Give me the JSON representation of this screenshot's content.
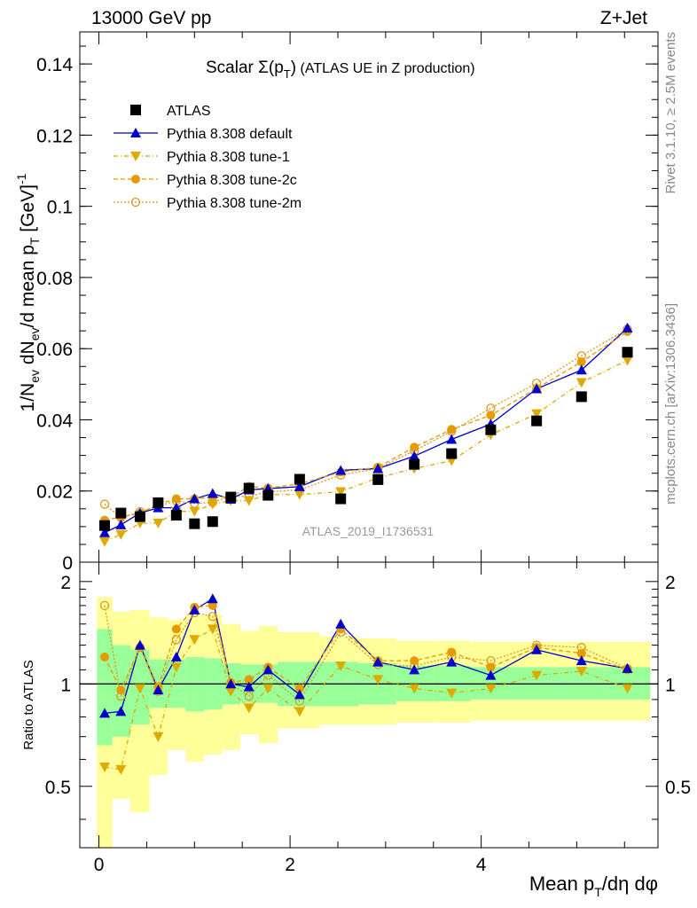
{
  "header": {
    "left": "13000 GeV pp",
    "right": "Z+Jet"
  },
  "side_labels": {
    "rivet": "Rivet 3.1.10, ≥ 2.5M events",
    "mcplots": "mcplots.cern.ch [arXiv:1306.3436]"
  },
  "watermark": "ATLAS_2019_I1736531",
  "chart_data": {
    "type": "scatter",
    "title": "Scalar Σ(pT) (ATLAS UE in Z production)",
    "title_parts": [
      "Scalar ",
      "Σ(p",
      "T",
      ")",
      " (ATLAS UE in Z production)"
    ],
    "xlabel": "Mean pT/dη dφ",
    "xlabel_parts": [
      "Mean p",
      "T",
      "/dη dφ"
    ],
    "ylabel": "1/Nev dNev/d mean pT [GeV]-1",
    "ylabel_parts": [
      "1/N",
      "ev",
      " dN",
      "ev",
      "/d mean p",
      "T",
      " [GeV]",
      "-1"
    ],
    "xlim": [
      -0.2,
      5.85
    ],
    "ylim": [
      0,
      0.149
    ],
    "x_ticks": [
      0,
      2,
      4
    ],
    "x_tick_labels": [
      "0",
      "2",
      "4"
    ],
    "y_ticks": [
      0,
      0.02,
      0.04,
      0.06,
      0.08,
      0.1,
      0.12,
      0.14
    ],
    "y_tick_labels": [
      "0",
      "0.02",
      "0.04",
      "0.06",
      "0.08",
      "0.1",
      "0.12",
      "0.14"
    ],
    "legend_position": "top-left",
    "x": [
      0.06,
      0.23,
      0.43,
      0.62,
      0.81,
      1.0,
      1.19,
      1.38,
      1.57,
      1.77,
      2.1,
      2.53,
      2.92,
      3.3,
      3.69,
      4.1,
      4.58,
      5.05,
      5.53
    ],
    "series": [
      {
        "name": "ATLAS",
        "color": "#000000",
        "marker": "square",
        "values": [
          0.0103,
          0.0138,
          0.0128,
          0.0167,
          0.0132,
          0.0108,
          0.0114,
          0.0183,
          0.0208,
          0.0188,
          0.0233,
          0.0178,
          0.0232,
          0.0275,
          0.0305,
          0.0372,
          0.0397,
          0.0465,
          0.059
        ]
      },
      {
        "name": "Pythia 8.308 default",
        "color": "#0000cc",
        "marker": "triangle-up",
        "values": [
          0.0083,
          0.0105,
          0.0138,
          0.0153,
          0.0153,
          0.0178,
          0.0193,
          0.0177,
          0.0203,
          0.0207,
          0.0212,
          0.0258,
          0.0263,
          0.0298,
          0.0345,
          0.0388,
          0.0487,
          0.054,
          0.0658
        ]
      },
      {
        "name": "Pythia 8.308 tune-1",
        "color": "#ddaa00",
        "marker": "triangle-down",
        "values": [
          0.0058,
          0.0078,
          0.011,
          0.011,
          0.0143,
          0.0143,
          0.0163,
          0.0173,
          0.0173,
          0.019,
          0.019,
          0.0198,
          0.0237,
          0.0263,
          0.0285,
          0.0358,
          0.0417,
          0.0505,
          0.0567
        ]
      },
      {
        "name": "Pythia 8.308 tune-2c",
        "color": "#e69a00",
        "marker": "circle",
        "values": [
          0.0118,
          0.0127,
          0.0137,
          0.0163,
          0.0178,
          0.0178,
          0.0183,
          0.0183,
          0.0213,
          0.0208,
          0.022,
          0.0253,
          0.0267,
          0.0323,
          0.0373,
          0.0413,
          0.0488,
          0.0563,
          0.0648
        ]
      },
      {
        "name": "Pythia 8.308 tune-2m",
        "color": "#dd9922",
        "marker": "open-circle",
        "values": [
          0.0163,
          0.0125,
          0.0142,
          0.0158,
          0.0172,
          0.0165,
          0.0168,
          0.0185,
          0.0185,
          0.0198,
          0.0203,
          0.0245,
          0.0263,
          0.0313,
          0.0368,
          0.0433,
          0.0503,
          0.058,
          0.0655
        ]
      }
    ],
    "ratio_panel": {
      "ylabel": "Ratio to ATLAS",
      "ylim": [
        0.33,
        2.28
      ],
      "y_ticks": [
        0.5,
        1,
        2
      ],
      "y_tick_labels": [
        "0.5",
        "1",
        "2"
      ],
      "band_edges": [
        -0.02,
        0.14,
        0.33,
        0.53,
        0.72,
        0.91,
        1.1,
        1.29,
        1.48,
        1.67,
        1.87,
        2.31,
        2.72,
        3.11,
        3.5,
        3.89,
        4.3,
        4.85,
        5.3,
        5.77
      ],
      "band_inner": [
        [
          0.66,
          1.45
        ],
        [
          0.7,
          1.3
        ],
        [
          0.76,
          1.26
        ],
        [
          0.85,
          1.18
        ],
        [
          0.85,
          1.18
        ],
        [
          0.83,
          1.2
        ],
        [
          0.84,
          1.19
        ],
        [
          0.87,
          1.15
        ],
        [
          0.88,
          1.14
        ],
        [
          0.88,
          1.14
        ],
        [
          0.86,
          1.16
        ],
        [
          0.86,
          1.16
        ],
        [
          0.87,
          1.15
        ],
        [
          0.89,
          1.13
        ],
        [
          0.89,
          1.13
        ],
        [
          0.9,
          1.12
        ],
        [
          0.9,
          1.12
        ],
        [
          0.9,
          1.12
        ],
        [
          0.9,
          1.12
        ]
      ],
      "band_outer": [
        [
          0.33,
          1.8
        ],
        [
          0.46,
          1.63
        ],
        [
          0.42,
          1.65
        ],
        [
          0.54,
          1.57
        ],
        [
          0.64,
          1.54
        ],
        [
          0.59,
          1.59
        ],
        [
          0.62,
          1.6
        ],
        [
          0.64,
          1.5
        ],
        [
          0.71,
          1.43
        ],
        [
          0.67,
          1.48
        ],
        [
          0.74,
          1.42
        ],
        [
          0.76,
          1.38
        ],
        [
          0.76,
          1.36
        ],
        [
          0.77,
          1.34
        ],
        [
          0.77,
          1.34
        ],
        [
          0.78,
          1.33
        ],
        [
          0.78,
          1.33
        ],
        [
          0.78,
          1.33
        ],
        [
          0.78,
          1.33
        ]
      ],
      "series": [
        {
          "name": "Pythia 8.308 default",
          "values": [
            0.82,
            0.83,
            1.3,
            0.96,
            1.2,
            1.65,
            1.78,
            1.0,
            0.98,
            1.1,
            0.93,
            1.5,
            1.16,
            1.1,
            1.16,
            1.06,
            1.26,
            1.17,
            1.11
          ]
        },
        {
          "name": "Pythia 8.308 tune-1",
          "values": [
            0.57,
            0.56,
            0.97,
            0.7,
            1.12,
            1.35,
            1.45,
            0.95,
            0.85,
            0.97,
            0.83,
            1.13,
            1.03,
            0.97,
            0.94,
            0.97,
            1.06,
            1.09,
            0.97
          ]
        },
        {
          "name": "Pythia 8.308 tune-2c",
          "values": [
            1.2,
            0.96,
            1.28,
            0.98,
            1.45,
            1.68,
            1.7,
            1.01,
            1.03,
            1.12,
            0.97,
            1.45,
            1.17,
            1.17,
            1.24,
            1.12,
            1.28,
            1.23,
            1.1
          ]
        },
        {
          "name": "Pythia 8.308 tune-2m",
          "values": [
            1.7,
            0.92,
            1.28,
            0.95,
            1.35,
            1.62,
            1.58,
            1.0,
            0.92,
            1.06,
            0.89,
            1.42,
            1.14,
            1.13,
            1.2,
            1.17,
            1.3,
            1.28,
            1.11
          ]
        }
      ]
    }
  }
}
